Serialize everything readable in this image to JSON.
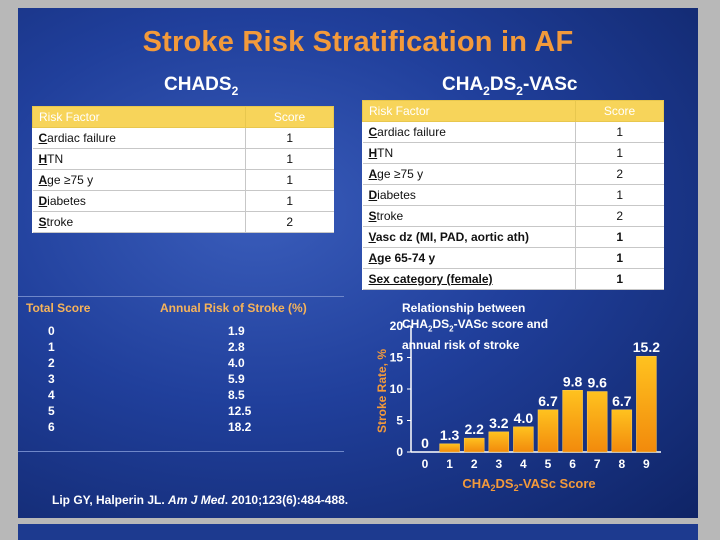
{
  "title": "Stroke Risk Stratification in AF",
  "chads2": {
    "heading_main": "CHADS",
    "heading_sub": "2",
    "col_factor": "Risk Factor",
    "col_score": "Score",
    "rows": [
      {
        "factor": "Cardiac failure",
        "score": "1"
      },
      {
        "factor": "HTN",
        "score": "1"
      },
      {
        "factor": "Age ≥75 y",
        "score": "1"
      },
      {
        "factor": "Diabetes",
        "score": "1"
      },
      {
        "factor": "Stroke",
        "score": "2"
      }
    ]
  },
  "vasc": {
    "heading_a": "CHA",
    "heading_sub1": "2",
    "heading_b": "DS",
    "heading_sub2": "2",
    "heading_c": "-VASc",
    "col_factor": "Risk Factor",
    "col_score": "Score",
    "rows": [
      {
        "factor": "Cardiac failure",
        "score": "1"
      },
      {
        "factor": "HTN",
        "score": "1"
      },
      {
        "factor": "Age ≥75 y",
        "score": "2"
      },
      {
        "factor": "Diabetes",
        "score": "1"
      },
      {
        "factor": "Stroke",
        "score": "2"
      },
      {
        "factor": "Vasc dz (MI, PAD, aortic ath)",
        "score": "1"
      },
      {
        "factor": "Age 65-74 y",
        "score": "1"
      },
      {
        "factor": "Sex category (female)",
        "score": "1"
      }
    ]
  },
  "score_table": {
    "col_total": "Total Score",
    "col_annual": "Annual Risk of Stroke (%)",
    "totals": [
      "0",
      "1",
      "2",
      "3",
      "4",
      "5",
      "6"
    ],
    "annual": [
      "1.9",
      "2.8",
      "4.0",
      "5.9",
      "8.5",
      "12.5",
      "18.2"
    ]
  },
  "chart_data": {
    "type": "bar",
    "title_line1": "Relationship between",
    "title_line2a": "CHA",
    "title_line2b": "DS",
    "title_line2c": "-VASc score and",
    "title_line3": "annual risk of stroke",
    "categories": [
      "0",
      "1",
      "2",
      "3",
      "4",
      "5",
      "6",
      "7",
      "8",
      "9"
    ],
    "values": [
      0,
      1.3,
      2.2,
      3.2,
      4.0,
      6.7,
      9.8,
      9.6,
      6.7,
      15.2
    ],
    "labels": [
      "0",
      "1.3",
      "2.2",
      "3.2",
      "4.0",
      "6.7",
      "9.8",
      "9.6",
      "6.7",
      "15.2"
    ],
    "ylabel": "Stroke Rate, %",
    "xlabel_a": "CHA",
    "xlabel_b": "DS",
    "xlabel_c": "-VASc Score",
    "sub": "2",
    "yticks": [
      "0",
      "5",
      "10",
      "15",
      "20"
    ],
    "ylim": [
      0,
      20
    ],
    "bar_color": "#f7a616"
  },
  "citation": {
    "authors": "Lip GY, Halperin JL. ",
    "journal": "Am J Med",
    "details": ". 2010;123(6):484-488."
  }
}
